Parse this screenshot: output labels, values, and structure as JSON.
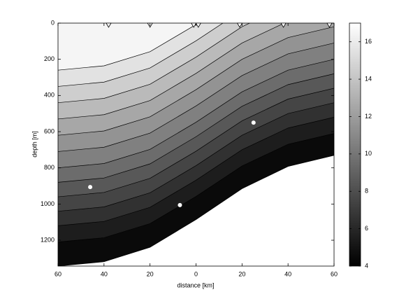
{
  "chart_data": {
    "type": "contour",
    "xlabel": "distance [km]",
    "ylabel": "depth [m]",
    "xlim": [
      -60,
      60
    ],
    "xticks": [
      {
        "value": -60,
        "label": "60"
      },
      {
        "value": -40,
        "label": "40"
      },
      {
        "value": -20,
        "label": "20"
      },
      0,
      {
        "value": 20,
        "label": "20"
      },
      {
        "value": 40,
        "label": "40"
      },
      {
        "value": 60,
        "label": "60"
      }
    ],
    "ylim": [
      0,
      1343
    ],
    "yinvert": true,
    "yticks": [
      0,
      200,
      400,
      600,
      800,
      1000,
      1200
    ],
    "clim": [
      4,
      17
    ],
    "cticks": [
      4,
      6,
      8,
      10,
      12,
      14,
      16
    ],
    "x": [
      -60,
      -40,
      -20,
      0,
      20,
      40,
      60
    ],
    "levels": [
      {
        "level": 16,
        "values": [
          260,
          236,
          158,
          8,
          -160,
          -280,
          -340
        ]
      },
      {
        "level": 15,
        "values": [
          350,
          326,
          248,
          98,
          -70,
          -190,
          -250
        ]
      },
      {
        "level": 14,
        "values": [
          440,
          416,
          338,
          188,
          20,
          -100,
          -160
        ]
      },
      {
        "level": 13,
        "values": [
          530,
          506,
          428,
          278,
          110,
          -10,
          -70
        ]
      },
      {
        "level": 12,
        "values": [
          620,
          596,
          518,
          368,
          200,
          80,
          20
        ]
      },
      {
        "level": 11,
        "values": [
          710,
          686,
          608,
          458,
          290,
          170,
          110
        ]
      },
      {
        "level": 10,
        "values": [
          800,
          776,
          698,
          548,
          380,
          260,
          200
        ]
      },
      {
        "level": 9,
        "values": [
          880,
          856,
          778,
          628,
          460,
          340,
          280
        ]
      },
      {
        "level": 8,
        "values": [
          960,
          936,
          858,
          708,
          540,
          420,
          360
        ]
      },
      {
        "level": 7,
        "values": [
          1040,
          1016,
          938,
          788,
          620,
          500,
          440
        ]
      },
      {
        "level": 6,
        "values": [
          1120,
          1096,
          1018,
          868,
          700,
          580,
          520
        ]
      },
      {
        "level": 5,
        "values": [
          1210,
          1186,
          1108,
          958,
          790,
          670,
          610
        ]
      }
    ],
    "seafloor": [
      1343,
      1319,
      1239,
      1086,
      915,
      792,
      731
    ],
    "stations": [
      -38,
      -20,
      -1,
      1,
      19,
      38,
      58
    ],
    "points": {
      "x": [
        -46,
        -7,
        25
      ],
      "y": [
        906,
        1006,
        550
      ]
    }
  }
}
